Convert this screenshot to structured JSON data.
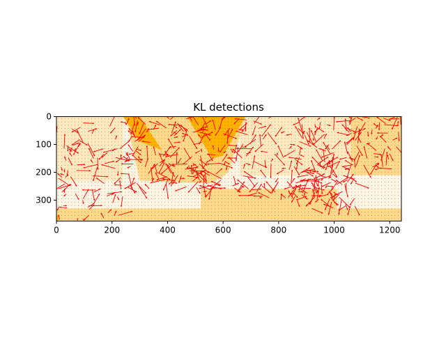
{
  "chart_data": {
    "type": "heatmap",
    "title": "KL detections",
    "xlabel": "",
    "ylabel": "",
    "xlim": [
      0,
      1242
    ],
    "ylim": [
      375,
      0
    ],
    "x_ticks": [
      0,
      200,
      400,
      600,
      800,
      1000,
      1200
    ],
    "y_ticks": [
      0,
      100,
      200,
      300
    ],
    "grid": false,
    "colors": {
      "strong": "#ffb300",
      "medium": "#ffd98a",
      "light": "#ffe9bf",
      "faint": "#fff5e3",
      "arrow": "#ff0000",
      "dots": "#7a3f3f"
    },
    "regions": [
      {
        "shape": "rect",
        "x0": 0,
        "y0": 0,
        "x1": 1242,
        "y1": 375,
        "level": "faint"
      },
      {
        "shape": "rect",
        "x0": 0,
        "y0": 0,
        "x1": 240,
        "y1": 230,
        "level": "light"
      },
      {
        "shape": "rect",
        "x0": 660,
        "y0": 0,
        "x1": 1242,
        "y1": 210,
        "level": "light"
      },
      {
        "shape": "rect",
        "x0": 1060,
        "y0": 0,
        "x1": 1242,
        "y1": 210,
        "level": "medium"
      },
      {
        "shape": "rect",
        "x0": 0,
        "y0": 330,
        "x1": 1242,
        "y1": 375,
        "level": "medium"
      },
      {
        "shape": "rect",
        "x0": 520,
        "y0": 260,
        "x1": 1010,
        "y1": 340,
        "level": "medium"
      },
      {
        "shape": "polygon",
        "points": [
          [
            250,
            0
          ],
          [
            680,
            0
          ],
          [
            620,
            200
          ],
          [
            560,
            240
          ],
          [
            300,
            230
          ]
        ],
        "level": "medium"
      },
      {
        "shape": "polygon",
        "points": [
          [
            470,
            0
          ],
          [
            680,
            0
          ],
          [
            600,
            140
          ],
          [
            560,
            150
          ]
        ],
        "level": "strong"
      },
      {
        "shape": "polygon",
        "points": [
          [
            240,
            0
          ],
          [
            300,
            0
          ],
          [
            380,
            120
          ],
          [
            300,
            90
          ]
        ],
        "level": "strong"
      },
      {
        "shape": "rect",
        "x0": 0,
        "y0": 355,
        "x1": 8,
        "y1": 375,
        "level": "strong"
      }
    ],
    "arrow_regions": [
      {
        "x0": 0,
        "y0": 0,
        "x1": 240,
        "y1": 380,
        "count": 90
      },
      {
        "x0": 240,
        "y0": 0,
        "x1": 700,
        "y1": 260,
        "count": 210
      },
      {
        "x0": 520,
        "y0": 240,
        "x1": 680,
        "y1": 270,
        "count": 14
      },
      {
        "x0": 700,
        "y0": 0,
        "x1": 1000,
        "y1": 300,
        "count": 130
      },
      {
        "x0": 850,
        "y0": 150,
        "x1": 1080,
        "y1": 330,
        "count": 80
      },
      {
        "x0": 1040,
        "y0": 0,
        "x1": 1242,
        "y1": 190,
        "count": 70
      }
    ],
    "dot_spacing": 12
  }
}
